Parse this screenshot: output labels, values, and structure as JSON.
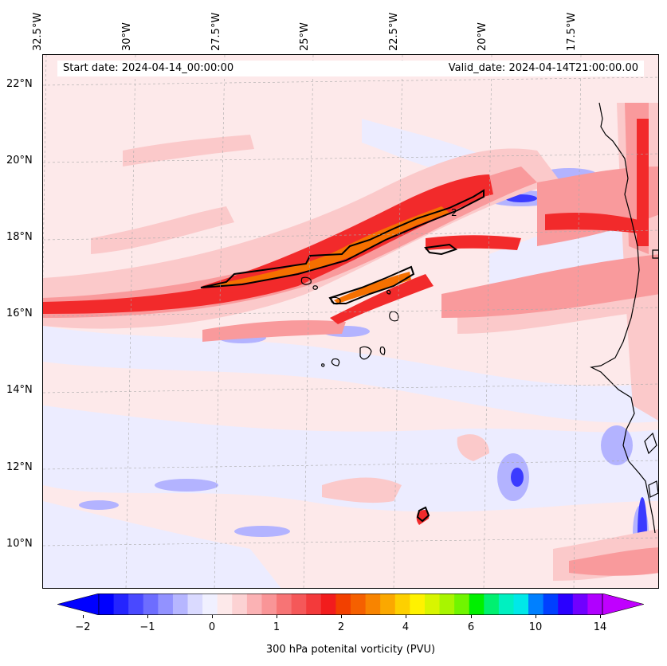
{
  "map": {
    "lon_labels": [
      "32.5°W",
      "30°W",
      "27.5°W",
      "25°W",
      "22.5°W",
      "20°W",
      "17.5°W"
    ],
    "lat_labels": [
      "22°N",
      "20°N",
      "18°N",
      "16°N",
      "14°N",
      "12°N",
      "10°N"
    ],
    "contour_label": "2",
    "colors": {
      "background": "#fde9ea",
      "light_pink": "#fcd2d3",
      "pink": "#fbb2b4",
      "salmon": "#f88c8e",
      "red_light": "#f5585a",
      "red": "#f21c1d",
      "red_deep": "#f51414",
      "orange_red": "#f8480b",
      "orange": "#f87a00",
      "light_blue": "#eaeaff",
      "blue_light": "#c9c9ff",
      "blue": "#a2a2ff",
      "blue_mid": "#7c7cff",
      "blue_deep": "#2a2aff",
      "coast": "#000000"
    }
  },
  "info": {
    "start_date": "Start date: 2024-04-14_00:00:00",
    "valid_date": "Valid_date: 2024-04-14T21:00:00.00"
  },
  "colorbar": {
    "label": "300 hPa potenital vorticity (PVU)",
    "ticks": [
      "−2",
      "−1",
      "0",
      "1",
      "2",
      "4",
      "6",
      "10",
      "14"
    ],
    "colors": [
      "#0000ff",
      "#2424ff",
      "#4949ff",
      "#6d6dff",
      "#9292ff",
      "#b6b6ff",
      "#dadaff",
      "#f0f0ff",
      "#fde9ea",
      "#fcd2d3",
      "#fbb2b4",
      "#f99597",
      "#f77475",
      "#f55859",
      "#f33a3b",
      "#f21c1d",
      "#f24000",
      "#f56000",
      "#f88400",
      "#fba800",
      "#fdd000",
      "#fff200",
      "#d8f500",
      "#a8f500",
      "#70f500",
      "#00f000",
      "#00f070",
      "#00f0c0",
      "#00e8e8",
      "#0080ff",
      "#0040ff",
      "#2a00ff",
      "#7000ff",
      "#b000ff"
    ],
    "left_arrow_color": "#0000ff",
    "right_arrow_color": "#c000ff"
  }
}
